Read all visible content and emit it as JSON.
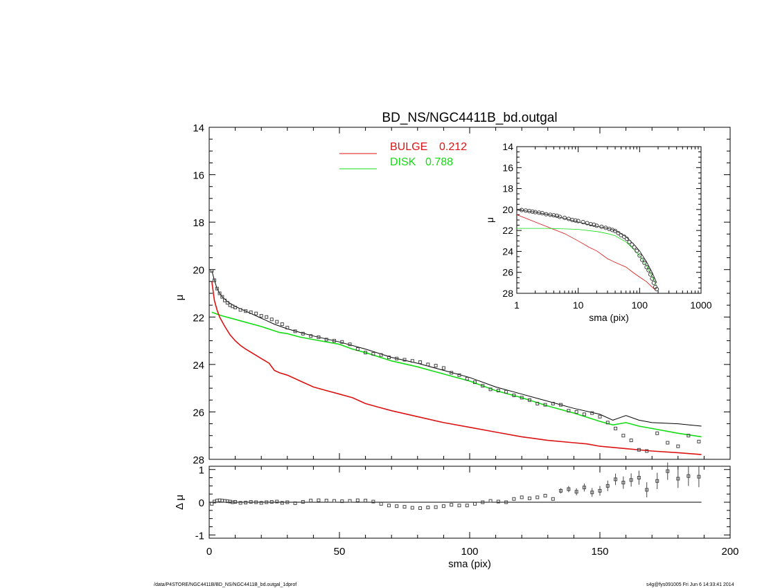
{
  "footer": {
    "path": "/data/P4STORE/NGC4411B/BD_NS/NGC4411B_bd.outgal_1dprof",
    "stamp": "s4g@fys091005  Fri Jun  6 14:33:41 2014"
  },
  "colors": {
    "bulge": "#dd1111",
    "disk": "#11dd11",
    "total": "#000000",
    "data": "#444444"
  },
  "chart_data": [
    {
      "type": "line",
      "panel": "main",
      "title": "BD_NS/NGC4411B_bd.outgal",
      "xlabel": "",
      "ylabel": "μ",
      "xlim": [
        0,
        200
      ],
      "ylim": [
        28,
        14
      ],
      "y_inverted": true,
      "xticks": [
        0,
        50,
        100,
        150,
        200
      ],
      "yticks": [
        14,
        16,
        18,
        20,
        22,
        24,
        26,
        28
      ],
      "legend": [
        {
          "label": "BULGE",
          "value": "0.212",
          "color": "#dd1111"
        },
        {
          "label": "DISK",
          "value": "0.788",
          "color": "#11dd11"
        }
      ],
      "series": [
        {
          "key": "bulge",
          "x": [
            1,
            2,
            3,
            4,
            5,
            6,
            8,
            10,
            12,
            14,
            17,
            20,
            23,
            25,
            27,
            30,
            33,
            35,
            40,
            45,
            50,
            55,
            60,
            65,
            70,
            80,
            90,
            100,
            110,
            120,
            130,
            140,
            145,
            150,
            160,
            170,
            180,
            189
          ],
          "y": [
            20.5,
            21.3,
            21.7,
            22.0,
            22.2,
            22.4,
            22.75,
            23.0,
            23.2,
            23.35,
            23.55,
            23.75,
            23.95,
            24.25,
            24.35,
            24.45,
            24.6,
            24.7,
            24.95,
            25.1,
            25.25,
            25.4,
            25.65,
            25.8,
            25.95,
            26.2,
            26.45,
            26.65,
            26.85,
            27.05,
            27.2,
            27.3,
            27.35,
            27.45,
            27.55,
            27.65,
            27.72,
            27.8
          ]
        },
        {
          "key": "disk",
          "x": [
            1,
            5,
            10,
            20,
            27,
            30,
            35,
            40,
            50,
            55,
            60,
            70,
            80,
            90,
            100,
            110,
            120,
            130,
            140,
            150,
            155,
            160,
            165,
            170,
            180,
            189
          ],
          "y": [
            21.8,
            21.95,
            22.1,
            22.4,
            22.65,
            22.7,
            22.85,
            22.95,
            23.15,
            23.35,
            23.5,
            23.85,
            24.1,
            24.4,
            24.7,
            25.1,
            25.4,
            25.75,
            26.05,
            26.4,
            26.55,
            26.45,
            26.6,
            26.7,
            26.9,
            27.05
          ]
        },
        {
          "key": "total",
          "x": [
            1,
            2,
            3,
            4,
            5,
            7,
            10,
            15,
            20,
            25,
            30,
            35,
            40,
            50,
            60,
            70,
            80,
            90,
            100,
            110,
            120,
            130,
            140,
            150,
            155,
            160,
            165,
            170,
            180,
            189
          ],
          "y": [
            20.05,
            20.45,
            20.8,
            21.0,
            21.15,
            21.35,
            21.55,
            21.8,
            22.05,
            22.3,
            22.5,
            22.65,
            22.8,
            23.05,
            23.35,
            23.7,
            23.95,
            24.25,
            24.55,
            24.95,
            25.25,
            25.55,
            25.85,
            26.1,
            26.35,
            26.15,
            26.35,
            26.45,
            26.5,
            26.6
          ]
        },
        {
          "key": "data",
          "x": [
            1,
            2,
            3,
            4,
            5,
            6,
            7,
            8,
            9,
            10,
            12,
            14,
            16,
            18,
            20,
            22,
            24,
            26,
            28,
            30,
            33,
            36,
            39,
            42,
            45,
            48,
            51,
            54,
            57,
            60,
            63,
            66,
            69,
            72,
            75,
            78,
            81,
            84,
            87,
            90,
            93,
            96,
            99,
            102,
            105,
            108,
            111,
            114,
            117,
            120,
            123,
            126,
            129,
            132,
            135,
            138,
            141,
            144,
            147,
            150,
            153,
            156,
            159,
            162,
            165,
            168,
            172,
            176,
            180,
            184,
            188
          ],
          "y": [
            20.05,
            20.45,
            20.8,
            21.0,
            21.15,
            21.3,
            21.4,
            21.5,
            21.55,
            21.6,
            21.7,
            21.75,
            21.8,
            21.85,
            21.95,
            22.0,
            22.1,
            22.2,
            22.3,
            22.45,
            22.6,
            22.7,
            22.8,
            22.85,
            22.95,
            23.0,
            23.05,
            23.15,
            23.35,
            23.5,
            23.55,
            23.6,
            23.7,
            23.75,
            23.8,
            23.85,
            23.9,
            24.0,
            24.05,
            24.15,
            24.35,
            24.45,
            24.6,
            24.75,
            24.9,
            25.05,
            25.1,
            25.15,
            25.3,
            25.4,
            25.5,
            25.65,
            25.7,
            25.65,
            25.7,
            25.95,
            26.0,
            26.1,
            26.05,
            26.2,
            26.45,
            26.7,
            27.0,
            27.2,
            27.6,
            27.65,
            26.9,
            27.3,
            27.45,
            27.0,
            27.25
          ]
        }
      ]
    },
    {
      "type": "scatter",
      "panel": "residual",
      "xlabel": "sma (pix)",
      "ylabel": "Δ μ",
      "xlim": [
        0,
        200
      ],
      "ylim": [
        -1.1,
        1.1
      ],
      "xticks": [
        0,
        50,
        100,
        150,
        200
      ],
      "yticks": [
        -1,
        0,
        1
      ],
      "x": [
        1,
        2,
        3,
        4,
        5,
        6,
        7,
        8,
        9,
        10,
        12,
        14,
        16,
        18,
        20,
        22,
        24,
        26,
        28,
        30,
        33,
        36,
        39,
        42,
        45,
        48,
        51,
        54,
        57,
        60,
        63,
        66,
        69,
        72,
        75,
        78,
        81,
        84,
        87,
        90,
        93,
        96,
        99,
        102,
        105,
        108,
        111,
        114,
        117,
        120,
        123,
        126,
        129,
        132,
        135,
        138,
        141,
        144,
        147,
        150,
        153,
        156,
        159,
        162,
        165,
        168,
        172,
        176,
        180,
        184,
        188
      ],
      "y": [
        -0.05,
        0.02,
        0.05,
        0.06,
        0.05,
        0.04,
        0.03,
        0.02,
        0.0,
        0.01,
        -0.02,
        -0.01,
        0.01,
        0.0,
        -0.02,
        0.0,
        0.01,
        0.02,
        -0.02,
        0.0,
        -0.03,
        0.01,
        0.05,
        0.06,
        0.05,
        0.04,
        0.03,
        0.04,
        0.06,
        0.05,
        0.02,
        -0.05,
        -0.1,
        -0.12,
        -0.14,
        -0.17,
        -0.18,
        -0.16,
        -0.15,
        -0.12,
        -0.08,
        -0.1,
        -0.1,
        -0.05,
        0.0,
        0.04,
        0.02,
        0.0,
        0.1,
        0.15,
        0.12,
        0.15,
        0.2,
        0.1,
        0.35,
        0.4,
        0.32,
        0.45,
        0.3,
        0.35,
        0.5,
        0.7,
        0.6,
        0.68,
        0.75,
        0.38,
        0.65,
        0.95,
        0.72,
        0.8,
        0.78
      ]
    },
    {
      "type": "line",
      "panel": "inset",
      "xlabel": "sma (pix)",
      "ylabel": "μ",
      "x_scale": "log",
      "xlim": [
        1,
        1000
      ],
      "ylim": [
        28,
        14
      ],
      "y_inverted": true,
      "xticks": [
        1,
        10,
        100,
        1000
      ],
      "yticks": [
        14,
        16,
        18,
        20,
        22,
        24,
        26,
        28
      ],
      "series": [
        {
          "key": "bulge",
          "x": [
            1,
            1.5,
            2,
            3,
            4,
            6,
            10,
            15,
            20,
            30,
            40,
            60,
            80,
            100,
            130,
            160,
            190
          ],
          "y": [
            20.5,
            20.9,
            21.2,
            21.6,
            21.9,
            22.3,
            23.0,
            23.6,
            23.95,
            24.7,
            25.05,
            25.5,
            26.05,
            26.45,
            26.9,
            27.4,
            27.8
          ]
        },
        {
          "key": "disk",
          "x": [
            1,
            3,
            6,
            10,
            20,
            30,
            40,
            60,
            80,
            100,
            130,
            160,
            190
          ],
          "y": [
            21.8,
            21.8,
            21.85,
            21.9,
            22.1,
            22.3,
            22.5,
            23.1,
            23.8,
            24.4,
            25.4,
            26.4,
            27.3
          ]
        },
        {
          "key": "total",
          "x": [
            1,
            1.5,
            2,
            3,
            4,
            6,
            10,
            15,
            20,
            30,
            40,
            60,
            80,
            100,
            130,
            160,
            190
          ],
          "y": [
            20.05,
            20.15,
            20.25,
            20.45,
            20.6,
            20.85,
            21.2,
            21.45,
            21.6,
            21.8,
            22.0,
            22.6,
            23.3,
            23.95,
            25.0,
            26.0,
            27.0
          ]
        },
        {
          "key": "data",
          "x": [
            1.2,
            1.4,
            1.6,
            1.8,
            2,
            2.3,
            2.6,
            3,
            3.5,
            4,
            4.5,
            5,
            6,
            7,
            8,
            9,
            10,
            12,
            14,
            16,
            18,
            20,
            24,
            28,
            32,
            36,
            40,
            45,
            50,
            56,
            62,
            68,
            75,
            82,
            90,
            100,
            110,
            120,
            130,
            140,
            150,
            160,
            170,
            180,
            190
          ],
          "y": [
            20.05,
            20.1,
            20.15,
            20.2,
            20.25,
            20.3,
            20.35,
            20.45,
            20.5,
            20.55,
            20.6,
            20.7,
            20.8,
            20.9,
            21.0,
            21.05,
            21.1,
            21.2,
            21.3,
            21.4,
            21.45,
            21.55,
            21.65,
            21.75,
            21.85,
            21.95,
            22.05,
            22.25,
            22.45,
            22.6,
            22.8,
            23.1,
            23.35,
            23.6,
            23.95,
            24.4,
            24.8,
            25.1,
            25.5,
            25.8,
            26.2,
            26.6,
            27.0,
            27.4,
            27.6
          ]
        }
      ]
    }
  ]
}
